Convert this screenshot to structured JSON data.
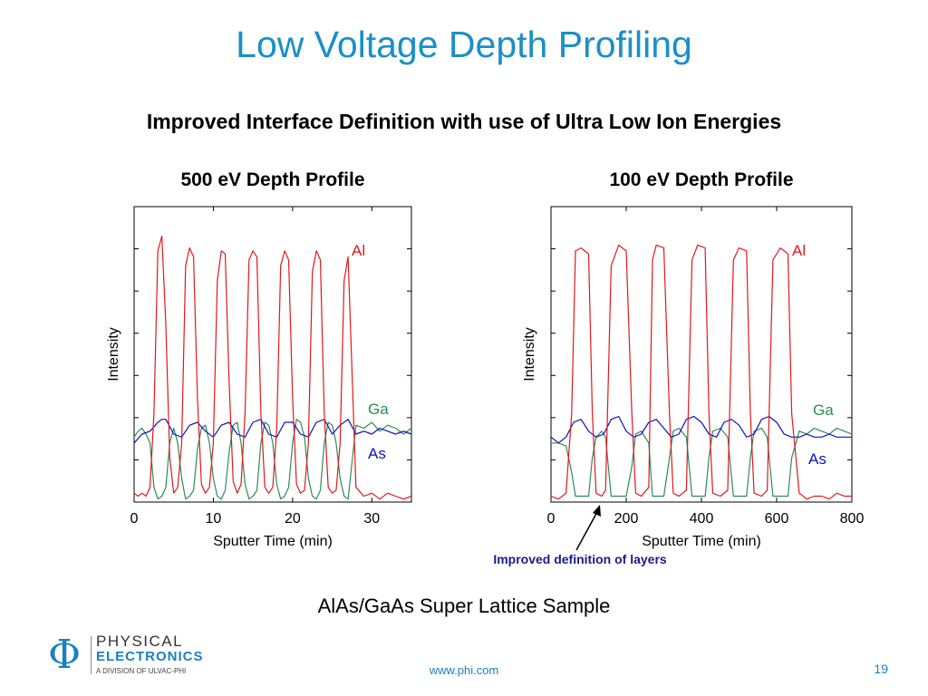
{
  "slide": {
    "title": "Low Voltage Depth Profiling",
    "subtitle": "Improved Interface Definition with use of Ultra Low Ion Energies",
    "caption": "AlAs/GaAs Super Lattice Sample",
    "annotation": "Improved definition of layers",
    "footer_url": "www.phi.com",
    "page_number": "19"
  },
  "logo": {
    "line1": "PHYSICAL",
    "line2": "ELECTRONICS",
    "line3": "A DIVISION OF ULVAC-PHI"
  },
  "colors": {
    "title": "#1a8fc9",
    "Al": "#e0191b",
    "Ga": "#2e8b57",
    "As": "#1010c0"
  },
  "chart_data": [
    {
      "type": "line",
      "title": "500 eV Depth Profile",
      "xlabel": "Sputter Time (min)",
      "ylabel": "Intensity",
      "xlim": [
        0,
        35
      ],
      "ylim": [
        0,
        1.0
      ],
      "xticks": [
        0,
        10,
        20,
        30
      ],
      "grid": false,
      "series": [
        {
          "name": "Al",
          "x": [
            0,
            0.5,
            1.0,
            1.5,
            2.0,
            2.5,
            3.0,
            3.5,
            4.0,
            4.5,
            5.0,
            5.5,
            6.0,
            6.5,
            7.0,
            7.5,
            8.0,
            8.5,
            9.0,
            9.5,
            10.0,
            10.5,
            11.0,
            11.5,
            12.0,
            12.5,
            13.0,
            13.5,
            14.0,
            14.5,
            15.0,
            15.5,
            16.0,
            16.5,
            17.0,
            17.5,
            18.0,
            18.5,
            19.0,
            19.5,
            20.0,
            20.5,
            21.0,
            21.5,
            22.0,
            22.5,
            23.0,
            23.5,
            24.0,
            24.5,
            25.0,
            25.5,
            26.0,
            26.5,
            27.0,
            28.0,
            29.0,
            30.0,
            31.0,
            32.0,
            33.0,
            34.0,
            35.0
          ],
          "values": [
            0.03,
            0.02,
            0.03,
            0.02,
            0.05,
            0.3,
            0.85,
            0.9,
            0.6,
            0.15,
            0.03,
            0.05,
            0.2,
            0.8,
            0.86,
            0.83,
            0.35,
            0.06,
            0.03,
            0.05,
            0.2,
            0.75,
            0.85,
            0.84,
            0.4,
            0.07,
            0.03,
            0.06,
            0.3,
            0.82,
            0.85,
            0.83,
            0.3,
            0.05,
            0.03,
            0.05,
            0.25,
            0.8,
            0.85,
            0.82,
            0.35,
            0.06,
            0.03,
            0.04,
            0.2,
            0.78,
            0.85,
            0.82,
            0.3,
            0.05,
            0.03,
            0.04,
            0.2,
            0.75,
            0.83,
            0.05,
            0.02,
            0.03,
            0.01,
            0.03,
            0.02,
            0.01,
            0.02
          ]
        },
        {
          "name": "Ga",
          "x": [
            0,
            0.5,
            1.0,
            1.5,
            2.0,
            2.5,
            3.0,
            3.5,
            4.0,
            4.5,
            5.0,
            5.5,
            6.0,
            6.5,
            7.0,
            7.5,
            8.0,
            8.5,
            9.0,
            9.5,
            10.0,
            10.5,
            11.0,
            11.5,
            12.0,
            12.5,
            13.0,
            13.5,
            14.0,
            14.5,
            15.0,
            15.5,
            16.0,
            16.5,
            17.0,
            17.5,
            18.0,
            18.5,
            19.0,
            19.5,
            20.0,
            20.5,
            21.0,
            21.5,
            22.0,
            22.5,
            23.0,
            23.5,
            24.0,
            24.5,
            25.0,
            25.5,
            26.0,
            26.5,
            27.0,
            28.0,
            29.0,
            30.0,
            31.0,
            32.0,
            33.0,
            34.0,
            35.0
          ],
          "values": [
            0.22,
            0.24,
            0.25,
            0.23,
            0.2,
            0.05,
            0.01,
            0.02,
            0.05,
            0.2,
            0.25,
            0.2,
            0.08,
            0.01,
            0.02,
            0.04,
            0.18,
            0.25,
            0.26,
            0.2,
            0.08,
            0.02,
            0.01,
            0.04,
            0.17,
            0.26,
            0.27,
            0.2,
            0.06,
            0.01,
            0.02,
            0.04,
            0.2,
            0.27,
            0.26,
            0.2,
            0.06,
            0.01,
            0.02,
            0.05,
            0.2,
            0.28,
            0.27,
            0.22,
            0.08,
            0.02,
            0.01,
            0.04,
            0.2,
            0.27,
            0.26,
            0.2,
            0.08,
            0.02,
            0.01,
            0.26,
            0.25,
            0.27,
            0.24,
            0.26,
            0.25,
            0.23,
            0.25
          ]
        },
        {
          "name": "As",
          "x": [
            0,
            1.0,
            2.0,
            3.0,
            3.5,
            4.0,
            5.0,
            6.0,
            7.0,
            8.0,
            9.0,
            10.0,
            11.0,
            12.0,
            13.0,
            14.0,
            15.0,
            16.0,
            17.0,
            18.0,
            19.0,
            20.0,
            21.0,
            22.0,
            23.0,
            24.0,
            25.0,
            26.0,
            27.0,
            28.0,
            29.0,
            30.0,
            31.0,
            32.0,
            33.0,
            34.0,
            35.0
          ],
          "values": [
            0.2,
            0.23,
            0.24,
            0.27,
            0.28,
            0.28,
            0.23,
            0.22,
            0.26,
            0.27,
            0.24,
            0.22,
            0.26,
            0.27,
            0.23,
            0.22,
            0.27,
            0.28,
            0.23,
            0.22,
            0.27,
            0.27,
            0.23,
            0.22,
            0.27,
            0.28,
            0.23,
            0.26,
            0.28,
            0.23,
            0.24,
            0.23,
            0.25,
            0.24,
            0.23,
            0.24,
            0.23
          ]
        }
      ]
    },
    {
      "type": "line",
      "title": "100 eV Depth Profile",
      "xlabel": "Sputter Time (min)",
      "ylabel": "Intensity",
      "xlim": [
        0,
        800
      ],
      "ylim": [
        0,
        1.0
      ],
      "xticks": [
        0,
        200,
        400,
        600,
        800
      ],
      "grid": false,
      "series": [
        {
          "name": "Al",
          "x": [
            0,
            20,
            40,
            55,
            65,
            80,
            100,
            110,
            120,
            135,
            145,
            160,
            180,
            200,
            215,
            225,
            240,
            260,
            270,
            280,
            300,
            315,
            325,
            340,
            360,
            375,
            390,
            410,
            420,
            430,
            450,
            470,
            485,
            500,
            520,
            530,
            540,
            560,
            575,
            590,
            610,
            630,
            640,
            660,
            680,
            700,
            720,
            740,
            760,
            780,
            800
          ],
          "values": [
            0.02,
            0.01,
            0.03,
            0.3,
            0.85,
            0.86,
            0.84,
            0.3,
            0.03,
            0.02,
            0.04,
            0.8,
            0.87,
            0.85,
            0.3,
            0.03,
            0.02,
            0.05,
            0.82,
            0.87,
            0.86,
            0.3,
            0.03,
            0.02,
            0.04,
            0.82,
            0.87,
            0.86,
            0.3,
            0.03,
            0.02,
            0.04,
            0.82,
            0.86,
            0.85,
            0.3,
            0.03,
            0.02,
            0.04,
            0.82,
            0.86,
            0.84,
            0.3,
            0.03,
            0.01,
            0.02,
            0.02,
            0.01,
            0.03,
            0.02,
            0.02
          ]
        },
        {
          "name": "Ga",
          "x": [
            0,
            20,
            40,
            55,
            65,
            80,
            100,
            110,
            120,
            135,
            145,
            160,
            180,
            200,
            215,
            225,
            240,
            260,
            270,
            280,
            300,
            315,
            325,
            340,
            360,
            375,
            390,
            410,
            420,
            430,
            450,
            470,
            485,
            500,
            520,
            530,
            540,
            560,
            575,
            590,
            610,
            630,
            640,
            660,
            680,
            700,
            720,
            740,
            760,
            780,
            800
          ],
          "values": [
            0.2,
            0.2,
            0.19,
            0.1,
            0.02,
            0.02,
            0.02,
            0.15,
            0.22,
            0.24,
            0.22,
            0.02,
            0.02,
            0.02,
            0.12,
            0.23,
            0.24,
            0.2,
            0.02,
            0.02,
            0.02,
            0.15,
            0.24,
            0.25,
            0.22,
            0.02,
            0.02,
            0.02,
            0.15,
            0.24,
            0.25,
            0.22,
            0.02,
            0.02,
            0.02,
            0.15,
            0.24,
            0.25,
            0.22,
            0.02,
            0.02,
            0.02,
            0.15,
            0.24,
            0.23,
            0.25,
            0.24,
            0.23,
            0.25,
            0.24,
            0.23
          ]
        },
        {
          "name": "As",
          "x": [
            0,
            20,
            40,
            60,
            80,
            100,
            120,
            140,
            160,
            180,
            200,
            220,
            240,
            260,
            280,
            300,
            320,
            340,
            360,
            380,
            400,
            420,
            440,
            460,
            480,
            500,
            520,
            540,
            560,
            580,
            600,
            620,
            640,
            660,
            680,
            700,
            720,
            740,
            760,
            780,
            800
          ],
          "values": [
            0.22,
            0.2,
            0.22,
            0.27,
            0.28,
            0.24,
            0.22,
            0.23,
            0.28,
            0.29,
            0.24,
            0.22,
            0.23,
            0.27,
            0.28,
            0.25,
            0.22,
            0.23,
            0.28,
            0.29,
            0.27,
            0.23,
            0.22,
            0.27,
            0.28,
            0.26,
            0.22,
            0.23,
            0.28,
            0.29,
            0.27,
            0.23,
            0.22,
            0.22,
            0.23,
            0.22,
            0.22,
            0.23,
            0.22,
            0.22,
            0.22
          ]
        }
      ]
    }
  ]
}
